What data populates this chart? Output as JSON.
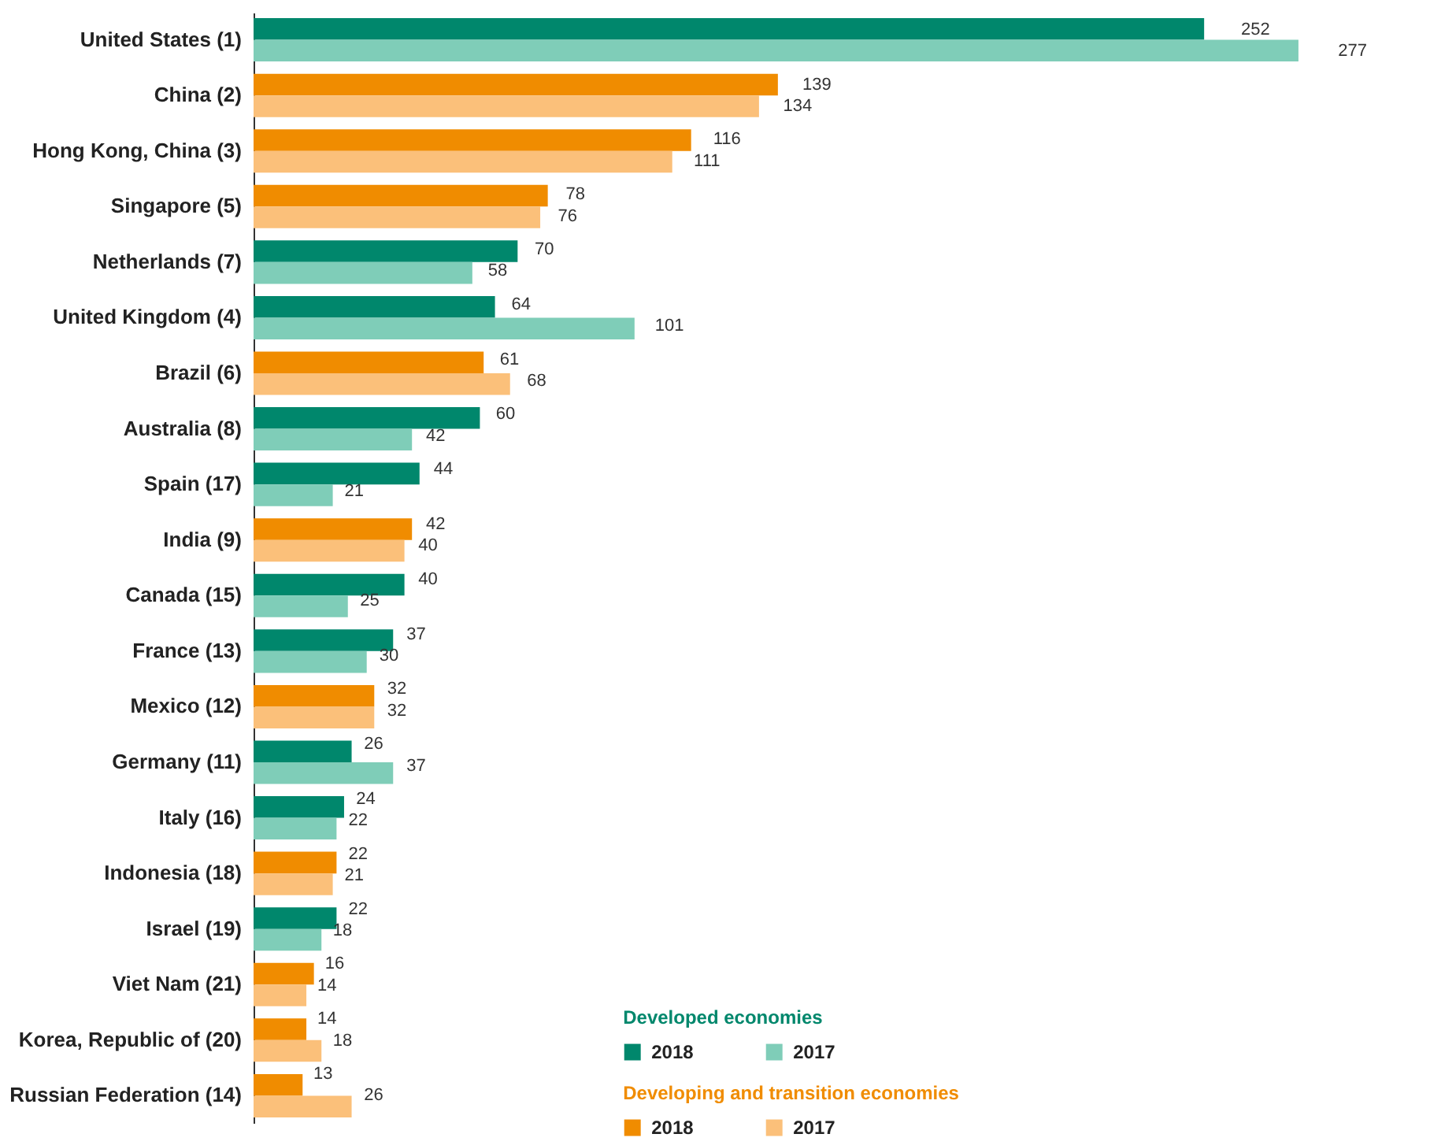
{
  "chart_data": {
    "type": "bar",
    "orientation": "horizontal",
    "data_labels": true,
    "legend": "bottom right",
    "grid": false,
    "categories": [
      "United States (1)",
      "China (2)",
      "Hong Kong, China (3)",
      "Singapore (5)",
      "Netherlands (7)",
      "United Kingdom (4)",
      "Brazil (6)",
      "Australia (8)",
      "Spain (17)",
      "India (9)",
      "Canada (15)",
      "France (13)",
      "Mexico (12)",
      "Germany (11)",
      "Italy (16)",
      "Indonesia (18)",
      "Israel (19)",
      "Viet Nam (21)",
      "Korea, Republic of (20)",
      "Russian Federation (14)"
    ],
    "annotations": [
      "Developed economies",
      "Developing and transition economies"
    ],
    "series": [
      {
        "name": "2018",
        "color": "#00876c",
        "values": [
          252,
          null,
          null,
          null,
          70,
          64,
          null,
          60,
          44,
          null,
          40,
          37,
          null,
          26,
          24,
          null,
          22,
          null,
          null,
          null
        ]
      },
      {
        "name": "2017",
        "color": "#7fcdb8",
        "values": [
          277,
          null,
          null,
          null,
          58,
          101,
          null,
          42,
          21,
          null,
          25,
          30,
          null,
          37,
          22,
          null,
          18,
          null,
          null,
          null
        ]
      },
      {
        "name": "2018",
        "color": "#f08c00",
        "values": [
          null,
          139,
          116,
          78,
          null,
          null,
          61,
          null,
          null,
          42,
          null,
          null,
          32,
          null,
          null,
          22,
          null,
          16,
          14,
          13
        ]
      },
      {
        "name": "2017",
        "color": "#fbc07a",
        "values": [
          null,
          134,
          111,
          76,
          null,
          null,
          68,
          null,
          null,
          40,
          null,
          null,
          32,
          null,
          null,
          21,
          null,
          14,
          18,
          26
        ]
      }
    ]
  }
}
